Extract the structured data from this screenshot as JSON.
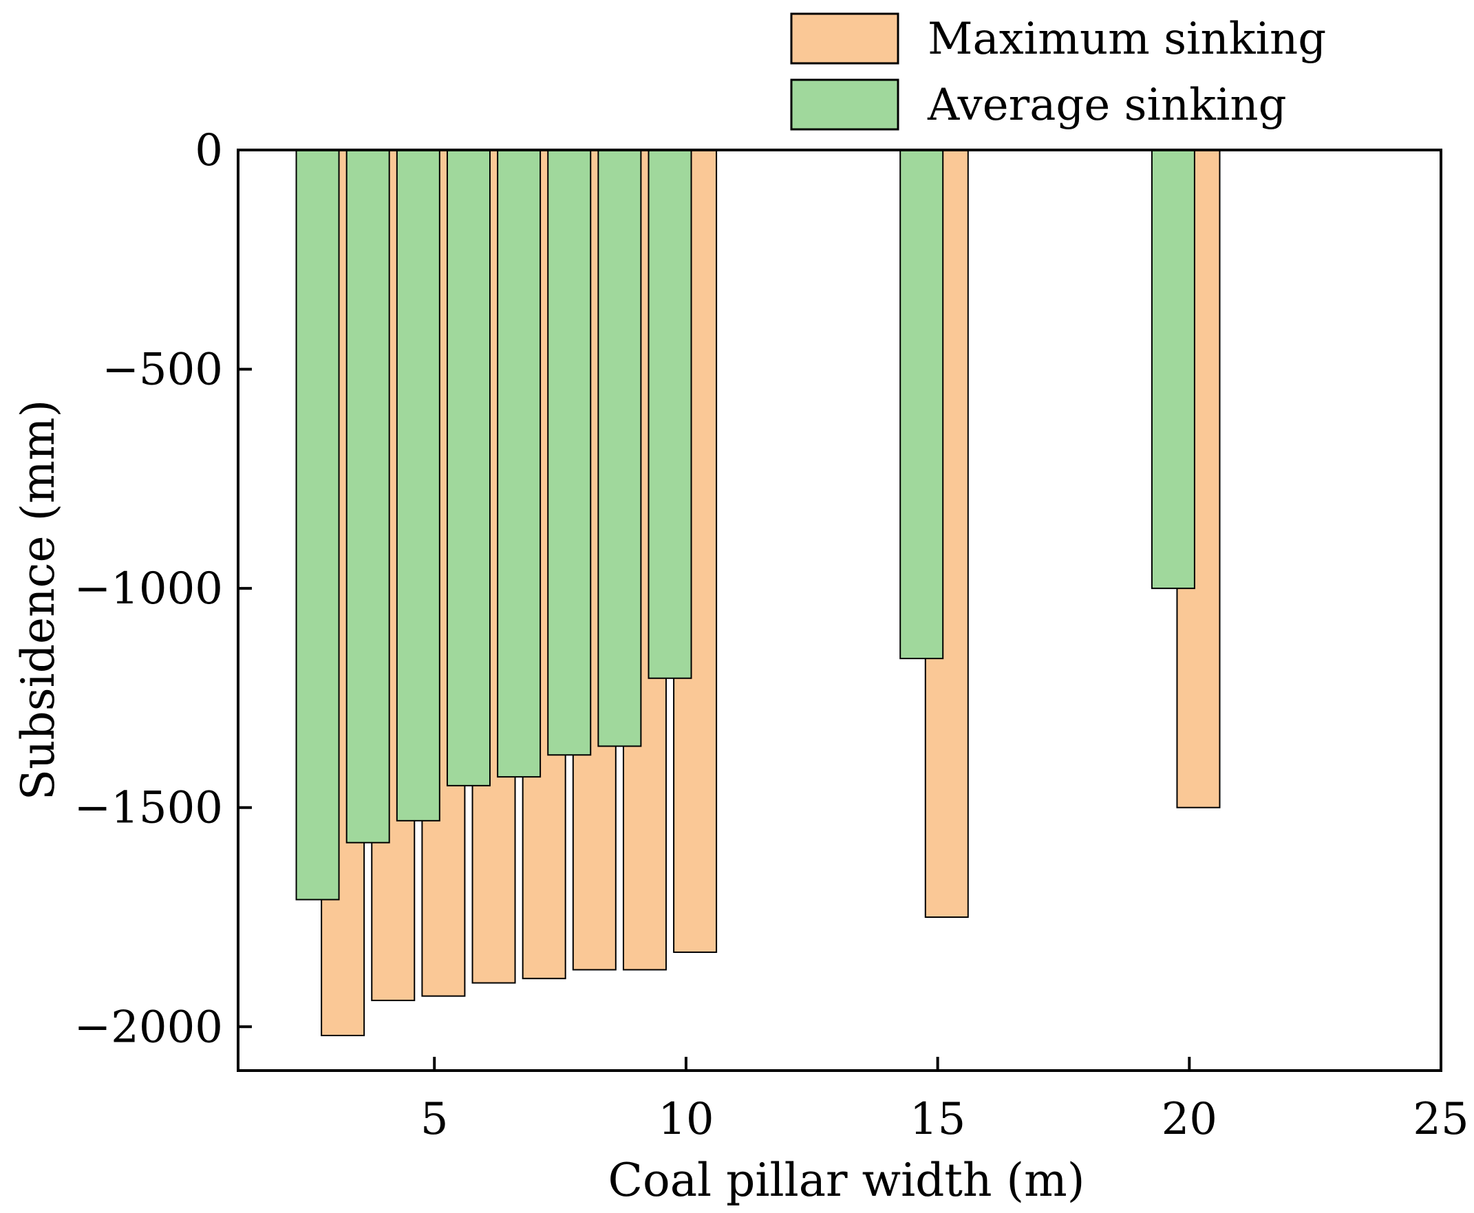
{
  "chart_data": {
    "type": "bar",
    "xlabel": "Coal pillar width (m)",
    "ylabel": "Subsidence (mm)",
    "xlim": [
      1.1,
      25
    ],
    "ylim": [
      -2100,
      0
    ],
    "xticks": [
      "5",
      "10",
      "15",
      "20",
      "25"
    ],
    "yticks": [
      "0",
      "−500",
      "−1000",
      "−1500",
      "−2000"
    ],
    "legend_position": "top-right",
    "categories": [
      3,
      4,
      5,
      6,
      7,
      8,
      9,
      10,
      15,
      20
    ],
    "series": [
      {
        "name": "Maximum sinking",
        "color": "#FAC896",
        "values": [
          -2020,
          -1940,
          -1930,
          -1900,
          -1890,
          -1870,
          -1870,
          -1830,
          -1750,
          -1500
        ]
      },
      {
        "name": "Average sinking",
        "color": "#A0D89C",
        "values": [
          -1710,
          -1580,
          -1530,
          -1450,
          -1430,
          -1380,
          -1360,
          -1205,
          -1160,
          -1000
        ]
      }
    ]
  }
}
